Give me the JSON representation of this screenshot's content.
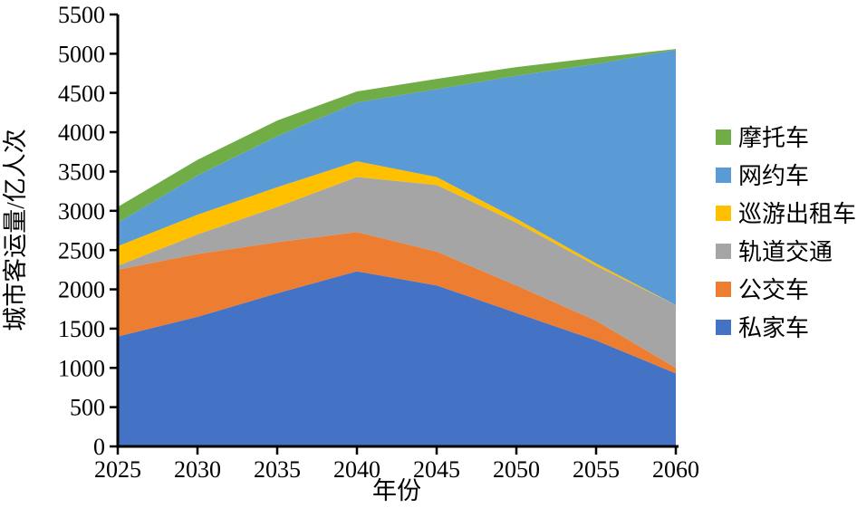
{
  "chart_data": {
    "type": "area",
    "stacked": true,
    "title": "",
    "xlabel": "年份",
    "ylabel": "城市客运量/亿人次",
    "x": [
      2025,
      2030,
      2035,
      2040,
      2045,
      2050,
      2055,
      2060
    ],
    "xtick_labels": [
      "2025",
      "2030",
      "2035",
      "2040",
      "2045",
      "2050",
      "2055",
      "2060"
    ],
    "ylim": [
      0,
      5500
    ],
    "ytick_step": 500,
    "ytick_labels": [
      "0",
      "500",
      "1000",
      "1500",
      "2000",
      "2500",
      "3000",
      "3500",
      "4000",
      "4500",
      "5000",
      "5500"
    ],
    "grid": false,
    "legend_position": "right",
    "legend_order_top_to_bottom": [
      "摩托车",
      "网约车",
      "巡游出租车",
      "轨道交通",
      "公交车",
      "私家车"
    ],
    "series": [
      {
        "name": "私家车",
        "color": "#4472C4",
        "values": [
          1400,
          1650,
          1950,
          2230,
          2050,
          1700,
          1350,
          930
        ]
      },
      {
        "name": "公交车",
        "color": "#ED7D31",
        "values": [
          850,
          800,
          650,
          500,
          430,
          350,
          250,
          70
        ]
      },
      {
        "name": "轨道交通",
        "color": "#A5A5A5",
        "values": [
          50,
          250,
          450,
          700,
          850,
          800,
          700,
          800
        ]
      },
      {
        "name": "巡游出租车",
        "color": "#FFC000",
        "values": [
          250,
          250,
          250,
          200,
          100,
          50,
          30,
          0
        ]
      },
      {
        "name": "网约车",
        "color": "#5B9BD5",
        "values": [
          300,
          500,
          650,
          750,
          1120,
          1820,
          2540,
          3250
        ]
      },
      {
        "name": "摩托车",
        "color": "#70AD47",
        "values": [
          200,
          200,
          200,
          140,
          130,
          110,
          80,
          10
        ]
      }
    ],
    "axis_color": "#000000"
  }
}
